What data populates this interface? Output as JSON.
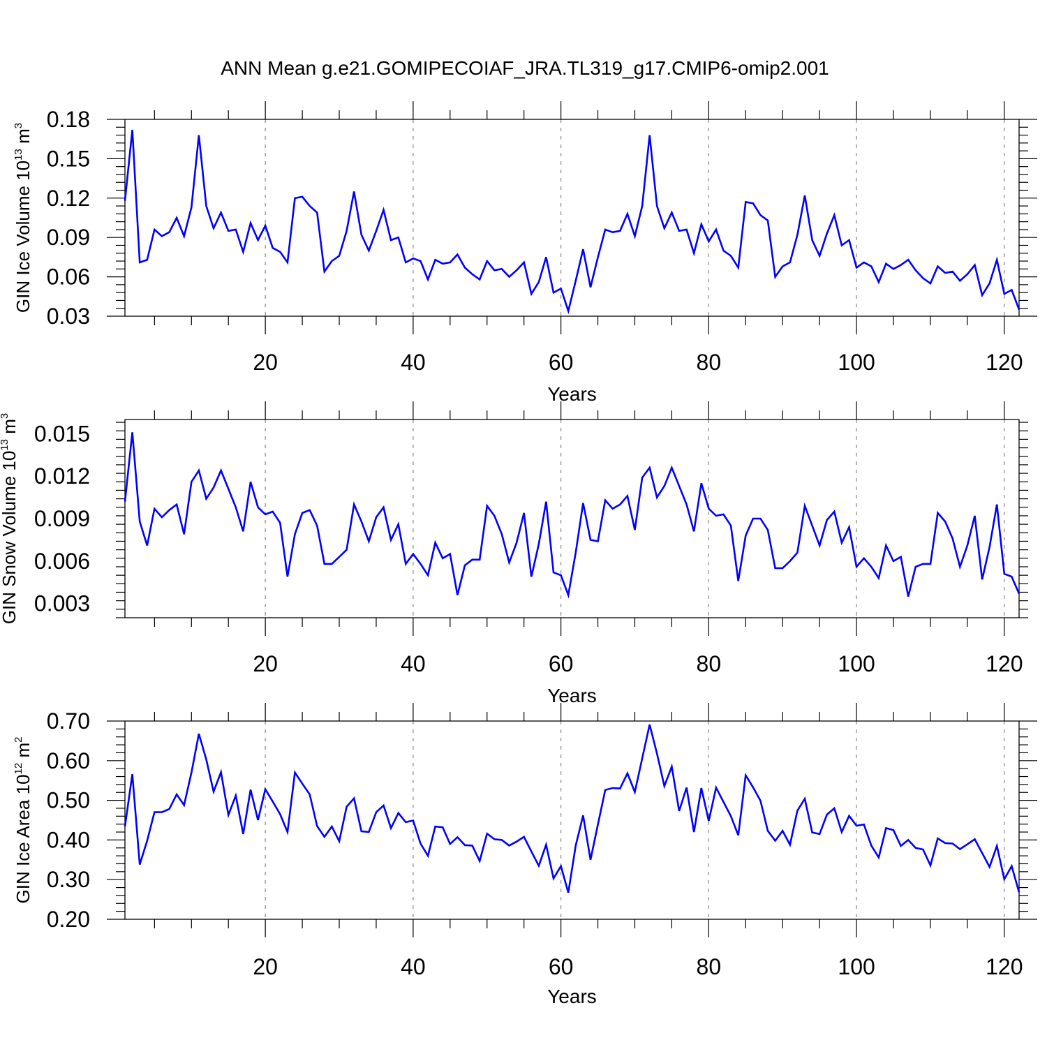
{
  "title": "ANN Mean g.e21.GOMIPECOIAF_JRA.TL319_g17.CMIP6-omip2.001",
  "colors": {
    "line": "#0000ff",
    "axis": "#000000",
    "grid": "#888888"
  },
  "chart_data": [
    {
      "type": "line",
      "xlabel": "Years",
      "ylabel": {
        "text": "GIN Ice Volume 10",
        "exp": "13",
        "unit": " m",
        "unit_exp": "3"
      },
      "xlim": [
        1,
        122
      ],
      "ylim": [
        0.03,
        0.18
      ],
      "x_ticks": [
        20,
        40,
        60,
        80,
        100,
        120
      ],
      "x_tick_labels": [
        "20",
        "40",
        "60",
        "80",
        "100",
        "120"
      ],
      "y_ticks": [
        0.03,
        0.06,
        0.09,
        0.12,
        0.15,
        0.18
      ],
      "y_tick_labels": [
        "0.03",
        "0.06",
        "0.09",
        "0.12",
        "0.15",
        "0.18"
      ],
      "grid": "vertical dashed at major x ticks",
      "values": [
        0.118,
        0.172,
        0.071,
        0.073,
        0.096,
        0.091,
        0.094,
        0.105,
        0.091,
        0.113,
        0.168,
        0.114,
        0.097,
        0.109,
        0.095,
        0.096,
        0.079,
        0.101,
        0.088,
        0.099,
        0.082,
        0.079,
        0.071,
        0.12,
        0.121,
        0.114,
        0.109,
        0.064,
        0.072,
        0.076,
        0.095,
        0.125,
        0.092,
        0.08,
        0.095,
        0.111,
        0.088,
        0.09,
        0.071,
        0.074,
        0.072,
        0.058,
        0.073,
        0.07,
        0.071,
        0.077,
        0.067,
        0.062,
        0.058,
        0.072,
        0.065,
        0.066,
        0.06,
        0.065,
        0.071,
        0.047,
        0.056,
        0.075,
        0.048,
        0.051,
        0.034,
        0.057,
        0.081,
        0.052,
        0.075,
        0.096,
        0.094,
        0.095,
        0.108,
        0.091,
        0.114,
        0.168,
        0.114,
        0.097,
        0.109,
        0.095,
        0.096,
        0.078,
        0.1,
        0.087,
        0.096,
        0.08,
        0.076,
        0.067,
        0.117,
        0.116,
        0.107,
        0.103,
        0.06,
        0.068,
        0.071,
        0.092,
        0.122,
        0.088,
        0.076,
        0.093,
        0.107,
        0.084,
        0.088,
        0.067,
        0.071,
        0.068,
        0.056,
        0.07,
        0.066,
        0.069,
        0.073,
        0.065,
        0.059,
        0.055,
        0.068,
        0.063,
        0.064,
        0.057,
        0.062,
        0.069,
        0.046,
        0.055,
        0.073,
        0.047,
        0.05,
        0.035
      ]
    },
    {
      "type": "line",
      "xlabel": "Years",
      "ylabel": {
        "text": "GIN Snow Volume 10",
        "exp": "13",
        "unit": " m",
        "unit_exp": "3"
      },
      "xlim": [
        1,
        122
      ],
      "ylim": [
        0.002,
        0.016
      ],
      "x_ticks": [
        20,
        40,
        60,
        80,
        100,
        120
      ],
      "x_tick_labels": [
        "20",
        "40",
        "60",
        "80",
        "100",
        "120"
      ],
      "y_ticks": [
        0.003,
        0.006,
        0.009,
        0.012,
        0.015
      ],
      "y_tick_labels": [
        "0.003",
        "0.006",
        "0.009",
        "0.012",
        "0.015"
      ],
      "grid": "vertical dashed at major x ticks",
      "values": [
        0.0102,
        0.0151,
        0.0088,
        0.0071,
        0.0097,
        0.0091,
        0.0096,
        0.01,
        0.0079,
        0.0116,
        0.0124,
        0.0104,
        0.0112,
        0.0124,
        0.0111,
        0.0098,
        0.0081,
        0.0116,
        0.0098,
        0.0093,
        0.0095,
        0.0087,
        0.0049,
        0.0079,
        0.0094,
        0.0096,
        0.0085,
        0.0058,
        0.0058,
        0.0063,
        0.0068,
        0.01,
        0.0088,
        0.0074,
        0.0091,
        0.0098,
        0.0075,
        0.0086,
        0.0058,
        0.0065,
        0.0058,
        0.005,
        0.0073,
        0.0062,
        0.0065,
        0.0036,
        0.0057,
        0.0061,
        0.0061,
        0.0099,
        0.0092,
        0.0079,
        0.0059,
        0.0073,
        0.0094,
        0.0049,
        0.0072,
        0.0102,
        0.0052,
        0.005,
        0.0036,
        0.0066,
        0.0101,
        0.0075,
        0.0074,
        0.0103,
        0.0097,
        0.01,
        0.0106,
        0.0082,
        0.0119,
        0.0126,
        0.0105,
        0.0113,
        0.0126,
        0.0113,
        0.01,
        0.0081,
        0.0115,
        0.0097,
        0.0092,
        0.0093,
        0.0085,
        0.0046,
        0.0078,
        0.009,
        0.009,
        0.0082,
        0.0055,
        0.0055,
        0.006,
        0.0066,
        0.0099,
        0.0085,
        0.0071,
        0.0089,
        0.0095,
        0.0073,
        0.0084,
        0.0056,
        0.0062,
        0.0056,
        0.0048,
        0.0071,
        0.006,
        0.0063,
        0.0035,
        0.0056,
        0.0058,
        0.0058,
        0.0094,
        0.0088,
        0.0076,
        0.0056,
        0.0071,
        0.0092,
        0.0047,
        0.007,
        0.01,
        0.0051,
        0.0049,
        0.0037
      ]
    },
    {
      "type": "line",
      "xlabel": "Years",
      "ylabel": {
        "text": "GIN Ice Area 10",
        "exp": "12",
        "unit": " m",
        "unit_exp": "2"
      },
      "xlim": [
        1,
        122
      ],
      "ylim": [
        0.2,
        0.7
      ],
      "x_ticks": [
        20,
        40,
        60,
        80,
        100,
        120
      ],
      "x_tick_labels": [
        "20",
        "40",
        "60",
        "80",
        "100",
        "120"
      ],
      "y_ticks": [
        0.2,
        0.3,
        0.4,
        0.5,
        0.6,
        0.7
      ],
      "y_tick_labels": [
        "0.20",
        "0.30",
        "0.40",
        "0.50",
        "0.60",
        "0.70"
      ],
      "grid": "vertical dashed at major x ticks",
      "values": [
        0.434,
        0.566,
        0.338,
        0.398,
        0.47,
        0.47,
        0.478,
        0.515,
        0.488,
        0.57,
        0.668,
        0.603,
        0.522,
        0.571,
        0.463,
        0.512,
        0.415,
        0.527,
        0.45,
        0.528,
        0.497,
        0.465,
        0.42,
        0.57,
        0.542,
        0.515,
        0.435,
        0.408,
        0.434,
        0.397,
        0.484,
        0.505,
        0.422,
        0.42,
        0.47,
        0.487,
        0.43,
        0.468,
        0.445,
        0.449,
        0.391,
        0.36,
        0.434,
        0.432,
        0.39,
        0.407,
        0.387,
        0.386,
        0.347,
        0.416,
        0.402,
        0.4,
        0.386,
        0.396,
        0.408,
        0.371,
        0.335,
        0.388,
        0.303,
        0.334,
        0.267,
        0.386,
        0.462,
        0.35,
        0.439,
        0.526,
        0.531,
        0.53,
        0.568,
        0.521,
        0.606,
        0.691,
        0.618,
        0.536,
        0.585,
        0.473,
        0.532,
        0.42,
        0.531,
        0.448,
        0.532,
        0.496,
        0.46,
        0.412,
        0.563,
        0.533,
        0.499,
        0.423,
        0.398,
        0.423,
        0.388,
        0.474,
        0.504,
        0.419,
        0.415,
        0.464,
        0.48,
        0.42,
        0.461,
        0.436,
        0.439,
        0.386,
        0.356,
        0.43,
        0.425,
        0.385,
        0.4,
        0.38,
        0.376,
        0.336,
        0.404,
        0.392,
        0.391,
        0.377,
        0.389,
        0.402,
        0.367,
        0.332,
        0.385,
        0.301,
        0.334,
        0.268
      ]
    }
  ]
}
